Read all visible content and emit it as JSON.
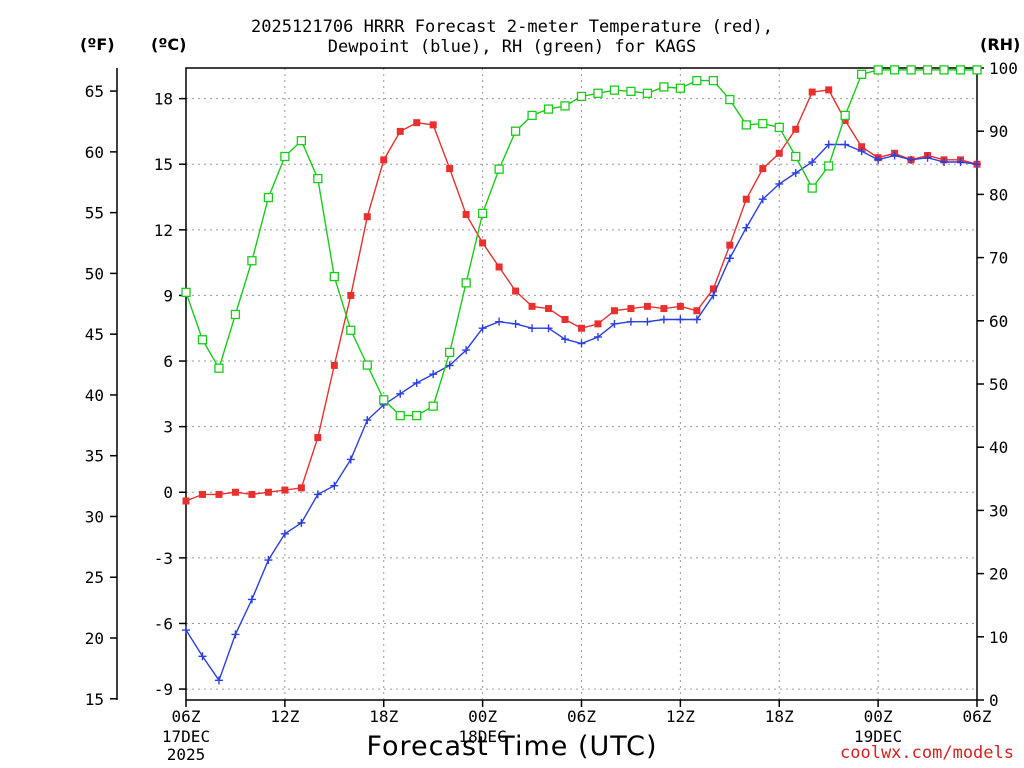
{
  "title": {
    "line1": "2025121706 HRRR Forecast 2-meter Temperature (red),",
    "line2": "Dewpoint (blue), RH (green) for KAGS"
  },
  "units": {
    "fahrenheit": "(ºF)",
    "celsius": "(ºC)",
    "rh": "(RH)"
  },
  "credit": "coolwx.com/models",
  "colors": {
    "temperature": "#e8302e",
    "dewpoint": "#2a3fe0",
    "rh": "#19cc19"
  },
  "chart_data": {
    "type": "line",
    "title": "2025121706 HRRR Forecast 2-meter Temperature (red), Dewpoint (blue), RH (green) for KAGS",
    "xlabel": "Forecast Time (UTC)",
    "x_unit": "forecast hour",
    "xlim": [
      0,
      48
    ],
    "x_ticks": [
      {
        "x": 0,
        "label": "06Z",
        "sub": [
          "17DEC",
          "2025"
        ]
      },
      {
        "x": 6,
        "label": "12Z",
        "sub": []
      },
      {
        "x": 12,
        "label": "18Z",
        "sub": []
      },
      {
        "x": 18,
        "label": "00Z",
        "sub": [
          "18DEC"
        ]
      },
      {
        "x": 24,
        "label": "06Z",
        "sub": []
      },
      {
        "x": 30,
        "label": "12Z",
        "sub": []
      },
      {
        "x": 36,
        "label": "18Z",
        "sub": []
      },
      {
        "x": 42,
        "label": "00Z",
        "sub": [
          "19DEC"
        ]
      },
      {
        "x": 48,
        "label": "06Z",
        "sub": []
      }
    ],
    "y_celsius": {
      "ylim": [
        -9.5,
        19.4
      ],
      "ticks": [
        -9,
        -6,
        -3,
        0,
        3,
        6,
        9,
        12,
        15,
        18
      ],
      "tick_labels": [
        "-9",
        "-6",
        "-3",
        "0",
        "3",
        "6",
        "9",
        "12",
        "15",
        "18"
      ]
    },
    "y_fahrenheit": {
      "ylim": [
        14.9,
        66.9
      ],
      "ticks": [
        15,
        20,
        25,
        30,
        35,
        40,
        45,
        50,
        55,
        60,
        65
      ],
      "tick_labels": [
        "15",
        "20",
        "25",
        "30",
        "35",
        "40",
        "45",
        "50",
        "55",
        "60",
        "65"
      ]
    },
    "y_rh": {
      "ylim": [
        0,
        100
      ],
      "ticks": [
        0,
        10,
        20,
        30,
        40,
        50,
        60,
        70,
        80,
        90,
        100
      ],
      "tick_labels": [
        "0",
        "10",
        "20",
        "30",
        "40",
        "50",
        "60",
        "70",
        "80",
        "90",
        "100"
      ]
    },
    "grid": true,
    "series": [
      {
        "name": "Temperature",
        "axis": "celsius",
        "marker": "filled-square",
        "x": [
          0,
          1,
          2,
          3,
          4,
          5,
          6,
          7,
          8,
          9,
          10,
          11,
          12,
          13,
          14,
          15,
          16,
          17,
          18,
          19,
          20,
          21,
          22,
          23,
          24,
          25,
          26,
          27,
          28,
          29,
          30,
          31,
          32,
          33,
          34,
          35,
          36,
          37,
          38,
          39,
          40,
          41,
          42,
          43,
          44,
          45,
          46,
          47,
          48
        ],
        "values": [
          -0.4,
          -0.1,
          -0.1,
          0.0,
          -0.1,
          0.0,
          0.1,
          0.2,
          2.5,
          5.8,
          9.0,
          12.6,
          15.2,
          16.5,
          16.9,
          16.8,
          14.8,
          12.7,
          11.4,
          10.3,
          9.2,
          8.5,
          8.4,
          7.9,
          7.5,
          7.7,
          8.3,
          8.4,
          8.5,
          8.4,
          8.5,
          8.3,
          9.3,
          11.3,
          13.4,
          14.8,
          15.5,
          16.6,
          18.3,
          18.4,
          17.0,
          15.8,
          15.3,
          15.5,
          15.2,
          15.4,
          15.2,
          15.2,
          15.0
        ]
      },
      {
        "name": "Dewpoint",
        "axis": "celsius",
        "marker": "plus",
        "x": [
          0,
          1,
          2,
          3,
          4,
          5,
          6,
          7,
          8,
          9,
          10,
          11,
          12,
          13,
          14,
          15,
          16,
          17,
          18,
          19,
          20,
          21,
          22,
          23,
          24,
          25,
          26,
          27,
          28,
          29,
          30,
          31,
          32,
          33,
          34,
          35,
          36,
          37,
          38,
          39,
          40,
          41,
          42,
          43,
          44,
          45,
          46,
          47,
          48
        ],
        "values": [
          -6.3,
          -7.5,
          -8.6,
          -6.5,
          -4.9,
          -3.1,
          -1.9,
          -1.4,
          -0.1,
          0.3,
          1.5,
          3.3,
          4.0,
          4.5,
          5.0,
          5.4,
          5.8,
          6.5,
          7.5,
          7.8,
          7.7,
          7.5,
          7.5,
          7.0,
          6.8,
          7.1,
          7.7,
          7.8,
          7.8,
          7.9,
          7.9,
          7.9,
          9.0,
          10.7,
          12.1,
          13.4,
          14.1,
          14.6,
          15.1,
          15.9,
          15.9,
          15.6,
          15.2,
          15.4,
          15.2,
          15.3,
          15.1,
          15.1,
          15.0
        ]
      },
      {
        "name": "RH",
        "axis": "rh",
        "marker": "open-square",
        "x": [
          0,
          1,
          2,
          3,
          4,
          5,
          6,
          7,
          8,
          9,
          10,
          11,
          12,
          13,
          14,
          15,
          16,
          17,
          18,
          19,
          20,
          21,
          22,
          23,
          24,
          25,
          26,
          27,
          28,
          29,
          30,
          31,
          32,
          33,
          34,
          35,
          36,
          37,
          38,
          39,
          40,
          41,
          42,
          43,
          44,
          45,
          46,
          47,
          48
        ],
        "values": [
          64.5,
          57,
          52.5,
          61,
          69.5,
          79.5,
          86,
          88.5,
          82.5,
          67,
          58.5,
          53,
          47.5,
          45,
          45,
          46.5,
          55,
          66,
          77,
          84,
          90,
          92.5,
          93.5,
          94,
          95.5,
          96,
          96.5,
          96.3,
          96,
          97,
          96.8,
          98,
          98,
          95,
          91,
          91.2,
          90.6,
          86,
          81,
          84.5,
          92.5,
          99,
          99.7,
          99.7,
          99.7,
          99.7,
          99.7,
          99.7,
          99.7
        ]
      }
    ]
  }
}
